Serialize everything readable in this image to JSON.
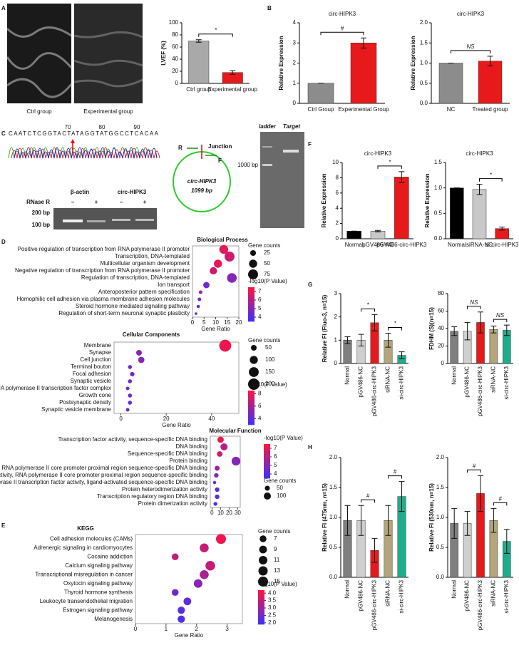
{
  "figure": {
    "panel_labels": [
      "A",
      "B",
      "C",
      "D",
      "E",
      "F",
      "G",
      "H"
    ],
    "echo_labels": [
      "Ctrl group",
      "Experimental group"
    ],
    "sequence": {
      "bases": "CAATCTCGGTACTATAGGTATGGCCTCACAA",
      "positions": [
        70,
        80,
        90
      ]
    },
    "circle": {
      "r_label": "R",
      "f_label": "F",
      "junction": "Junction",
      "name": "circ-HIPK3",
      "size": "1099 bp"
    },
    "gel": {
      "targets": [
        "β-actin",
        "circ-HIPK3"
      ],
      "treatment": "RNase R",
      "signs": [
        "−",
        "+",
        "−",
        "+"
      ],
      "markers": [
        "200 bp",
        "100 bp"
      ]
    },
    "blot": {
      "lanes": [
        "ladder",
        "Target"
      ],
      "marker": "1000 bp"
    }
  },
  "chart_data": [
    {
      "type": "bar",
      "ylabel": "LVEF (%)",
      "categories": [
        "Ctrl group",
        "Experimental group"
      ],
      "values": [
        70,
        18
      ],
      "errors": [
        2,
        3
      ],
      "colors": [
        "#a9a9a9",
        "#e8191a"
      ],
      "ylim": [
        0,
        100
      ],
      "yticks": [
        0,
        20,
        40,
        60,
        80,
        100
      ],
      "annotations": [
        {
          "text": "*",
          "between": [
            "Ctrl group",
            "Experimental group"
          ]
        }
      ]
    },
    {
      "type": "bar",
      "title": "circ-HIPK3",
      "ylabel": "Relative Expression",
      "categories": [
        "Ctrl Group",
        "Experimental Group"
      ],
      "values": [
        1,
        3.0
      ],
      "errors": [
        0,
        0.25
      ],
      "colors": [
        "#8c8c8c",
        "#e8191a"
      ],
      "ylim": [
        0,
        4
      ],
      "yticks": [
        0,
        1,
        2,
        3,
        4
      ],
      "annotations": [
        {
          "text": "#",
          "between": [
            "Ctrl Group",
            "Experimental Group"
          ]
        }
      ]
    },
    {
      "type": "bar",
      "title": "circ-HIPK3",
      "ylabel": "Relative Expression",
      "categories": [
        "NC",
        "Treated group"
      ],
      "values": [
        1,
        1.05
      ],
      "errors": [
        0,
        0.12
      ],
      "colors": [
        "#8c8c8c",
        "#e8191a"
      ],
      "ylim": [
        0,
        2
      ],
      "yticks": [
        {
          "value": 0,
          "label": "0.0"
        },
        {
          "value": 0.5,
          "label": "0.5"
        },
        {
          "value": 1,
          "label": "1.0"
        },
        {
          "value": 1.5,
          "label": "1.5"
        },
        {
          "value": 2,
          "label": "2.0"
        }
      ],
      "annotations": [
        {
          "text": "NS",
          "between": [
            "NC",
            "Treated group"
          ]
        }
      ]
    },
    {
      "type": "bar",
      "title": "circ-HIPK3",
      "ylabel": "Relative Expression",
      "categories": [
        "Normal",
        "pGV486-NC",
        "pGV486-circ-HIPK3"
      ],
      "values": [
        1,
        1,
        8.1
      ],
      "errors": [
        0,
        0.1,
        0.7
      ],
      "colors": [
        "#000000",
        "#c8c8c8",
        "#e8191a"
      ],
      "ylim": [
        0,
        10
      ],
      "yticks": [
        0,
        2,
        4,
        6,
        8,
        10
      ],
      "annotations": [
        {
          "text": "*",
          "between": [
            "pGV486-NC",
            "pGV486-circ-HIPK3"
          ]
        }
      ]
    },
    {
      "type": "bar",
      "title": "circ-HIPK3",
      "ylabel": "Relative Expression",
      "categories": [
        "Normal",
        "siRNA-NC",
        "si-circ-HIPK3"
      ],
      "values": [
        1,
        0.97,
        0.2
      ],
      "errors": [
        0,
        0.1,
        0.03
      ],
      "colors": [
        "#000000",
        "#c8c8c8",
        "#e8191a"
      ],
      "ylim": [
        0,
        1.5
      ],
      "yticks": [
        {
          "value": 0,
          "label": "0.0"
        },
        {
          "value": 0.5,
          "label": "0.5"
        },
        {
          "value": 1,
          "label": "1.0"
        },
        {
          "value": 1.5,
          "label": "1.5"
        }
      ],
      "annotations": [
        {
          "text": "*",
          "between": [
            "siRNA-NC",
            "si-circ-HIPK3"
          ]
        }
      ]
    },
    {
      "type": "bar",
      "ylabel": "Relative FI (Fluo-3, n=15)",
      "categories": [
        "Normal",
        "pGV486-NC",
        "pGV486-circ-HIPK3",
        "siRNA-NC",
        "si-circ-HIPK3"
      ],
      "values": [
        1.0,
        1.0,
        1.75,
        1.0,
        0.35
      ],
      "errors": [
        0.15,
        0.25,
        0.35,
        0.3,
        0.15
      ],
      "colors": [
        "#7f7f7f",
        "#cfcfcf",
        "#e8191a",
        "#b3a57c",
        "#1fae8c"
      ],
      "ylim": [
        0,
        3
      ],
      "yticks": [
        0,
        1,
        2,
        3
      ],
      "annotations": [
        {
          "text": "*",
          "between": [
            "pGV486-NC",
            "pGV486-circ-HIPK3"
          ]
        },
        {
          "text": "*",
          "between": [
            "siRNA-NC",
            "si-circ-HIPK3"
          ]
        }
      ]
    },
    {
      "type": "bar",
      "ylabel": "FDHM (S)(n=15)",
      "categories": [
        "Normal",
        "pGV486-NC",
        "pGV486-circ-HIPK3",
        "siRNA-NC",
        "si-circ-HIPK3"
      ],
      "values": [
        37,
        37,
        47,
        39,
        38
      ],
      "errors": [
        5,
        10,
        12,
        4,
        6
      ],
      "colors": [
        "#7f7f7f",
        "#cfcfcf",
        "#e8191a",
        "#b3a57c",
        "#1fae8c"
      ],
      "ylim": [
        0,
        80
      ],
      "yticks": [
        0,
        20,
        40,
        60,
        80
      ],
      "annotations": [
        {
          "text": "NS",
          "between": [
            "pGV486-NC",
            "pGV486-circ-HIPK3"
          ]
        },
        {
          "text": "NS",
          "between": [
            "siRNA-NC",
            "si-circ-HIPK3"
          ]
        }
      ]
    },
    {
      "type": "bar",
      "ylabel": "Relative FI (475nm, n=15)",
      "categories": [
        "Normal",
        "pGV486-NC",
        "pGV486-circ-HIPK3",
        "siRNA-NC",
        "si-circ-HIPK3"
      ],
      "values": [
        0.95,
        0.95,
        0.45,
        0.95,
        1.35
      ],
      "errors": [
        0.25,
        0.25,
        0.2,
        0.25,
        0.25
      ],
      "colors": [
        "#7f7f7f",
        "#cfcfcf",
        "#e8191a",
        "#b3a57c",
        "#1fae8c"
      ],
      "ylim": [
        0,
        2
      ],
      "yticks": [
        {
          "value": 0,
          "label": "0.0"
        },
        {
          "value": 0.5,
          "label": "0.5"
        },
        {
          "value": 1,
          "label": "1.0"
        },
        {
          "value": 1.5,
          "label": "1.5"
        },
        {
          "value": 2,
          "label": "2.0"
        }
      ],
      "annotations": [
        {
          "text": "#",
          "between": [
            "pGV486-NC",
            "pGV486-circ-HIPK3"
          ]
        },
        {
          "text": "#",
          "between": [
            "siRNA-NC",
            "si-circ-HIPK3"
          ]
        }
      ]
    },
    {
      "type": "bar",
      "ylabel": "Relative FI (530nm, n=15)",
      "categories": [
        "Normal",
        "pGV486-NC",
        "pGV486-circ-HIPK3",
        "siRNA-NC",
        "si-circ-HIPK3"
      ],
      "values": [
        0.9,
        0.9,
        1.4,
        0.95,
        0.6
      ],
      "errors": [
        0.25,
        0.2,
        0.3,
        0.2,
        0.2
      ],
      "colors": [
        "#7f7f7f",
        "#cfcfcf",
        "#e8191a",
        "#b3a57c",
        "#1fae8c"
      ],
      "ylim": [
        0,
        2
      ],
      "yticks": [
        {
          "value": 0,
          "label": "0.0"
        },
        {
          "value": 0.5,
          "label": "0.5"
        },
        {
          "value": 1,
          "label": "1.0"
        },
        {
          "value": 1.5,
          "label": "1.5"
        },
        {
          "value": 2,
          "label": "2.0"
        }
      ],
      "annotations": [
        {
          "text": "#",
          "between": [
            "pGV486-NC",
            "pGV486-circ-HIPK3"
          ]
        },
        {
          "text": "#",
          "between": [
            "siRNA-NC",
            "si-circ-HIPK3"
          ]
        }
      ]
    },
    {
      "type": "dot",
      "title": "Biological Process",
      "terms": [
        "Positive regulation of transcription from RNA polymerase II promoter",
        "Transcription, DNA-templated",
        "Multicellular organism development",
        "Negative regulation of transcription from RNA polymerase II promoter",
        "Regulation of transcription, DNA-templated",
        "Ion transport",
        "Anteroposterior pattern specification",
        "Homophilic cell adhesion via plasma membrane adhesion molecules",
        "Steroid hormone mediated signaling pathway",
        "Regulation of short-term neuronal synaptic plasticity"
      ],
      "x": [
        13.5,
        16,
        11,
        9,
        17,
        6,
        3.5,
        3,
        2.5,
        1.5
      ],
      "sizes": [
        60,
        75,
        50,
        40,
        70,
        30,
        10,
        10,
        8,
        5
      ],
      "pvalues": [
        7,
        6.5,
        7,
        6.5,
        5,
        4.5,
        5.5,
        4.5,
        4,
        4
      ],
      "xlim": [
        0,
        20
      ],
      "xticks": [
        0,
        5,
        10,
        15,
        20
      ],
      "xlabel": "Gene Ratio",
      "size_title": "Gene counts",
      "size_legend": [
        25,
        50,
        75
      ],
      "color_title": "-log10(P Value)",
      "color_ticks": [
        7,
        6,
        5,
        4
      ],
      "clim": [
        3.5,
        7.5
      ]
    },
    {
      "type": "dot",
      "title": "Cellular Components",
      "terms": [
        "Membrane",
        "Synapse",
        "Cell junction",
        "Terminal bouton",
        "Focal adhesion",
        "Synaptic vesicle",
        "RNA polymerase II transcription factor complex",
        "Growth cone",
        "Postsynaptic density",
        "Synaptic vesicle membrane"
      ],
      "x": [
        46,
        8,
        9,
        4,
        5,
        4,
        3,
        4,
        4,
        3
      ],
      "sizes": [
        220,
        50,
        60,
        25,
        30,
        25,
        20,
        25,
        25,
        20
      ],
      "pvalues": [
        8,
        5,
        5,
        4.5,
        4.5,
        4.5,
        4,
        4.5,
        4,
        4
      ],
      "xlim": [
        -3,
        52
      ],
      "xticks": [
        0,
        20,
        40
      ],
      "xlabel": "Gene Ratio",
      "size_title": "Gene counts",
      "size_legend": [
        50,
        100,
        150,
        200
      ],
      "color_title": "-log10(P Value)",
      "color_ticks": [
        8,
        6,
        4
      ],
      "clim": [
        3,
        8.5
      ]
    },
    {
      "type": "dot",
      "title": "Molecular Function",
      "terms": [
        "Transcription factor activity, sequence-specific DNA binding",
        "DNA binding",
        "Sequence-specific DNA binding",
        "Protein binding",
        "RNA polymerase II core promoter proximal region sequence-specific DNA binding",
        "Transcriptional activator activity, RNA polymerase II core promoter proximal region sequence-specific binding",
        "RNA polymerase II transcription factor activity, ligand-activated sequence-specific DNA binding",
        "Protein heterodimerization activity",
        "Transcription regulatory region DNA binding",
        "Protein dimerization activity"
      ],
      "x": [
        10,
        14,
        9,
        28,
        6,
        5,
        3,
        6,
        6,
        4
      ],
      "sizes": [
        80,
        100,
        60,
        150,
        50,
        40,
        20,
        40,
        40,
        30
      ],
      "pvalues": [
        7,
        6,
        6.5,
        5,
        5.5,
        5,
        4.5,
        4,
        4,
        4
      ],
      "xlim": [
        -2,
        33
      ],
      "xticks": [
        0,
        10,
        20,
        30
      ],
      "size_title": "Gene counts",
      "size_legend": [
        50,
        100
      ],
      "color_title": "-log10(P Value)",
      "color_ticks": [
        7,
        6,
        5,
        4
      ],
      "clim": [
        3.5,
        7.5
      ]
    },
    {
      "type": "dot",
      "title": "KEGG",
      "terms": [
        "Cell adhesion molecules (CAMs)",
        "Adrenergic signaling in cardiomyocytes",
        "Cocaine addiction",
        "Calcium signaling pathway",
        "Transcriptional misregulation in cancer",
        "Oxytocin signaling pathway",
        "Thyroid hormone synthesis",
        "Leukocyte transendothelial migration",
        "Estrogen signaling pathway",
        "Melanogenesis"
      ],
      "x": [
        2.8,
        2.25,
        1.3,
        2.45,
        2.25,
        2.05,
        1.3,
        1.7,
        1.5,
        1.5
      ],
      "sizes": [
        15,
        12,
        7,
        14,
        12,
        11,
        7,
        9,
        8,
        8
      ],
      "pvalues": [
        4.0,
        3.5,
        3.5,
        3.5,
        3.2,
        2.8,
        2.5,
        2.3,
        2.2,
        2.1
      ],
      "xlim": [
        0,
        3.5
      ],
      "xticks": [
        0,
        1,
        2,
        3
      ],
      "xlabel": "Gene Ratio",
      "size_title": "Gene counts",
      "size_legend": [
        7,
        9,
        11,
        13,
        15
      ],
      "color_title": "-log10(P Value)",
      "color_ticks": [
        {
          "value": 4,
          "label": "4.0"
        },
        3.5,
        {
          "value": 3,
          "label": "3.0"
        },
        2.5,
        {
          "value": 2,
          "label": "2.0"
        }
      ],
      "clim": [
        1.9,
        4.2
      ]
    }
  ]
}
